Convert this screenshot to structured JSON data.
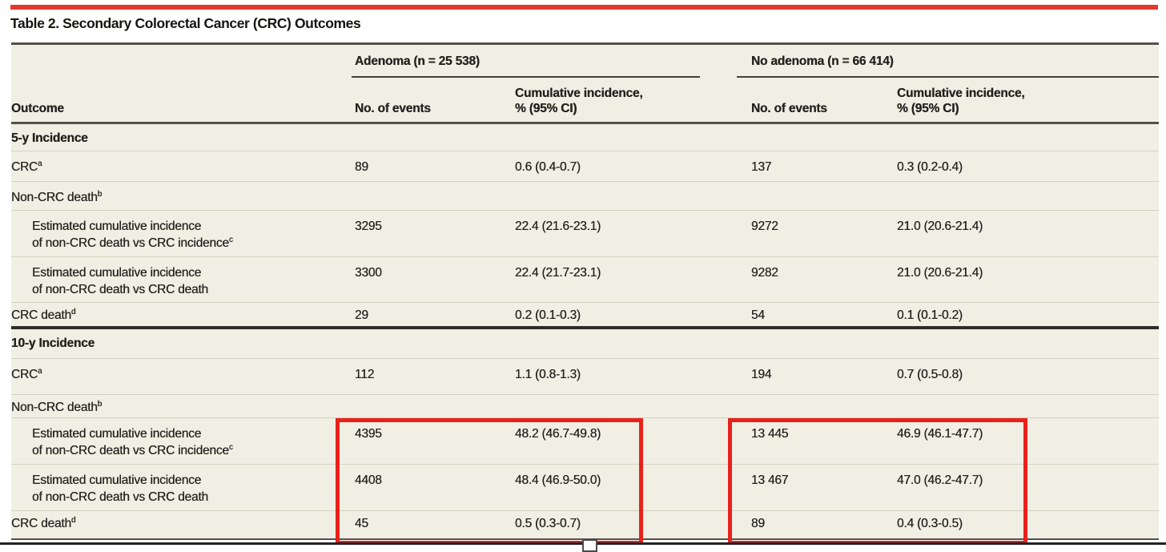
{
  "page": {
    "title": "Table 2. Secondary Colorectal Cancer (CRC) Outcomes"
  },
  "table": {
    "groups": [
      {
        "label": "Adenoma (n = 25 538)"
      },
      {
        "label": "No adenoma (n = 66 414)"
      }
    ],
    "col_headers": {
      "outcome": "Outcome",
      "events_adenoma": "No. of events",
      "ci_line1_adenoma": "Cumulative incidence,",
      "ci_line2_adenoma": "% (95% CI)",
      "events_noadenoma": "No. of events",
      "ci_line1_noadenoma": "Cumulative incidence,",
      "ci_line2_noadenoma": "% (95% CI)"
    },
    "rows": [
      {
        "type": "section",
        "label": "5-y Incidence"
      },
      {
        "type": "data",
        "label": "CRC",
        "sup": "a",
        "values": [
          "89",
          "0.6 (0.4-0.7)",
          "137",
          "0.3 (0.2-0.4)"
        ]
      },
      {
        "type": "subhead",
        "label": "Non-CRC death",
        "sup": "b"
      },
      {
        "type": "data2",
        "label_line1": "Estimated cumulative incidence",
        "label_line2": "of non-CRC death vs CRC incidence",
        "sup": "c",
        "values": [
          "3295",
          "22.4 (21.6-23.1)",
          "9272",
          "21.0 (20.6-21.4)"
        ]
      },
      {
        "type": "data2",
        "label_line1": "Estimated cumulative incidence",
        "label_line2": "of non-CRC death vs CRC death",
        "sup": "",
        "values": [
          "3300",
          "22.4 (21.7-23.1)",
          "9282",
          "21.0 (20.6-21.4)"
        ]
      },
      {
        "type": "data",
        "label": "CRC death",
        "sup": "d",
        "values": [
          "29",
          "0.2 (0.1-0.3)",
          "54",
          "0.1 (0.1-0.2)"
        ]
      },
      {
        "type": "section",
        "label": "10-y Incidence"
      },
      {
        "type": "data",
        "label": "CRC",
        "sup": "a",
        "values": [
          "112",
          "1.1 (0.8-1.3)",
          "194",
          "0.7 (0.5-0.8)"
        ]
      },
      {
        "type": "subhead",
        "label": "Non-CRC death",
        "sup": "b"
      },
      {
        "type": "data2",
        "label_line1": "Estimated cumulative incidence",
        "label_line2": "of non-CRC death vs CRC incidence",
        "sup": "c",
        "values": [
          "4395",
          "48.2 (46.7-49.8)",
          "13 445",
          "46.9 (46.1-47.7)"
        ]
      },
      {
        "type": "data2",
        "label_line1": "Estimated cumulative incidence",
        "label_line2": "of non-CRC death vs CRC death",
        "sup": "",
        "values": [
          "4408",
          "48.4 (46.9-50.0)",
          "13 467",
          "47.0 (46.2-47.7)"
        ]
      },
      {
        "type": "data",
        "label": "CRC death",
        "sup": "d",
        "values": [
          "45",
          "0.5 (0.3-0.7)",
          "89",
          "0.4 (0.3-0.5)"
        ]
      }
    ]
  },
  "annotations": {
    "highlight_boxes": [
      "adenoma-10y-noncrc-and-crc-death-values",
      "no-adenoma-10y-noncrc-and-crc-death-values"
    ]
  },
  "colors": {
    "accent_red_rule": "#e23a31",
    "highlight_red": "#e8211b",
    "table_background": "#f1efe4",
    "rule_dark": "#53514b"
  }
}
